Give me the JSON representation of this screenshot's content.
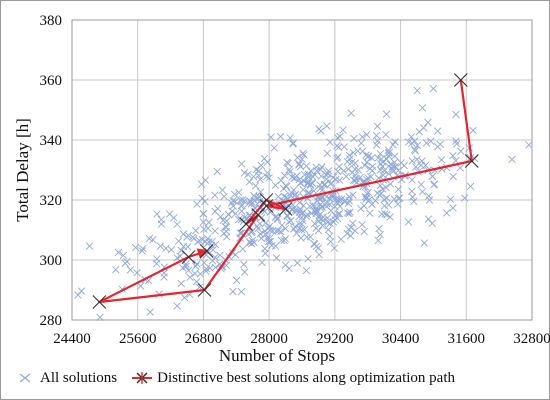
{
  "chart_data": {
    "type": "scatter",
    "xlabel": "Number of Stops",
    "ylabel": "Total Delay [h]",
    "xlim": [
      24400,
      32800
    ],
    "ylim": [
      280,
      380
    ],
    "xticks": [
      24400,
      25600,
      26800,
      28000,
      29200,
      30400,
      31600,
      32800
    ],
    "yticks": [
      280,
      300,
      320,
      340,
      360,
      380
    ],
    "grid": true,
    "legend_position": "bottom",
    "series": [
      {
        "name": "All solutions",
        "kind": "scatter-cloud",
        "marker": "x",
        "color": "#8fa8dc",
        "count": 650,
        "trend": {
          "slope_delay_per_stop": 0.0068,
          "x_center": 28600,
          "y_center": 319
        },
        "x_range": [
          24500,
          32750
        ],
        "spread_y": 9
      },
      {
        "name": "Distinctive best solutions along optimization path",
        "kind": "path",
        "marker": "asterisk",
        "color": "#e8242c",
        "marker_color": "#333333",
        "points": [
          {
            "x": 26860,
            "y": 303
          },
          {
            "x": 26530,
            "y": 301
          },
          {
            "x": 24900,
            "y": 286
          },
          {
            "x": 26820,
            "y": 290
          },
          {
            "x": 27800,
            "y": 315
          },
          {
            "x": 27580,
            "y": 312
          },
          {
            "x": 27950,
            "y": 320
          },
          {
            "x": 28300,
            "y": 317
          },
          {
            "x": 27950,
            "y": 318
          },
          {
            "x": 31700,
            "y": 333
          },
          {
            "x": 31500,
            "y": 360
          }
        ]
      }
    ]
  }
}
